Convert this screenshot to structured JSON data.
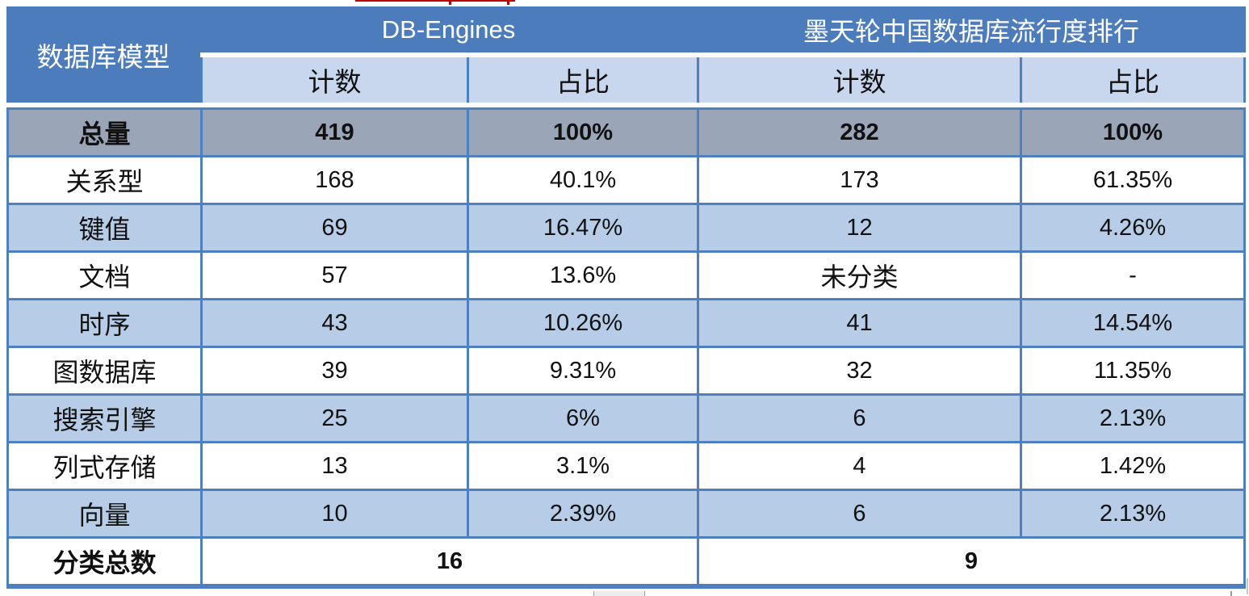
{
  "page": {
    "background": "#ffffff"
  },
  "colors": {
    "header_blue": "#4C7CBC",
    "border_blue": "#4E80BF",
    "subheader_blue": "#C8D6EE",
    "stripe_blue": "#B7CCE7",
    "total_gray": "#9AA5B8",
    "header_text": "#FFFFFF",
    "body_text": "#111111",
    "red_artifact": "#C00000"
  },
  "table": {
    "corner_header": "数据库模型",
    "group_headers": [
      {
        "label": "DB-Engines"
      },
      {
        "label": "墨天轮中国数据库流行度排行"
      }
    ],
    "subheaders": [
      "计数",
      "占比",
      "计数",
      "占比"
    ],
    "total_row": {
      "label": "总量",
      "values": [
        "419",
        "100%",
        "282",
        "100%"
      ]
    },
    "rows": [
      {
        "label": "关系型",
        "values": [
          "168",
          "40.1%",
          "173",
          "61.35%"
        ]
      },
      {
        "label": "键值",
        "values": [
          "69",
          "16.47%",
          "12",
          "4.26%"
        ]
      },
      {
        "label": "文档",
        "values": [
          "57",
          "13.6%",
          "未分类",
          "-"
        ]
      },
      {
        "label": "时序",
        "values": [
          "43",
          "10.26%",
          "41",
          "14.54%"
        ]
      },
      {
        "label": "图数据库",
        "values": [
          "39",
          "9.31%",
          "32",
          "11.35%"
        ]
      },
      {
        "label": "搜索引擎",
        "values": [
          "25",
          "6%",
          "6",
          "2.13%"
        ]
      },
      {
        "label": "列式存储",
        "values": [
          "13",
          "3.1%",
          "4",
          "1.42%"
        ]
      },
      {
        "label": "向量",
        "values": [
          "10",
          "2.39%",
          "6",
          "2.13%"
        ]
      }
    ],
    "footer_row": {
      "label": "分类总数",
      "values": [
        "16",
        "9"
      ]
    }
  },
  "chart_data": {
    "type": "table",
    "title": "",
    "columns": [
      "数据库模型",
      "DB-Engines 计数",
      "DB-Engines 占比",
      "墨天轮中国数据库流行度排行 计数",
      "墨天轮中国数据库流行度排行 占比"
    ],
    "rows": [
      [
        "总量",
        419,
        "100%",
        282,
        "100%"
      ],
      [
        "关系型",
        168,
        "40.1%",
        173,
        "61.35%"
      ],
      [
        "键值",
        69,
        "16.47%",
        12,
        "4.26%"
      ],
      [
        "文档",
        57,
        "13.6%",
        "未分类",
        "-"
      ],
      [
        "时序",
        43,
        "10.26%",
        41,
        "14.54%"
      ],
      [
        "图数据库",
        39,
        "9.31%",
        32,
        "11.35%"
      ],
      [
        "搜索引擎",
        25,
        "6%",
        6,
        "2.13%"
      ],
      [
        "列式存储",
        13,
        "3.1%",
        4,
        "1.42%"
      ],
      [
        "向量",
        10,
        "2.39%",
        6,
        "2.13%"
      ],
      [
        "分类总数",
        16,
        "",
        9,
        ""
      ]
    ]
  }
}
